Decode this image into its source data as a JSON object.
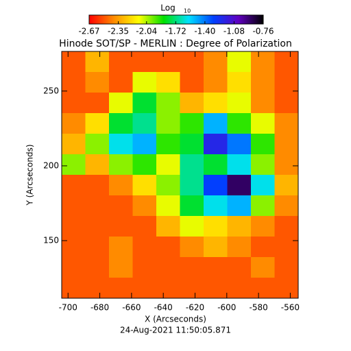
{
  "chart_data": {
    "type": "heatmap",
    "title": "Hinode SOT/SP - MERLIN : Degree of Polarization",
    "colorbar_label": "Log",
    "colorbar_label_sub": "10",
    "x_label": "X (Arcseconds)",
    "y_label": "Y (Arcseconds)",
    "footer": "24-Aug-2021 11:50:05.871",
    "xlim": [
      -704,
      -555
    ],
    "ylim": [
      111.5,
      276.5
    ],
    "xticks": [
      -700,
      -680,
      -660,
      -640,
      -620,
      -600,
      -580,
      -560
    ],
    "yticks": [
      150,
      200,
      250
    ],
    "clim": [
      -2.67,
      -0.76
    ],
    "cticks": [
      -2.67,
      -2.35,
      -2.04,
      -1.72,
      {
        "value": -1.4,
        "label": "-1.40"
      },
      -1.08,
      -0.76
    ],
    "colormap": [
      "#ff0000",
      "#ff8c00",
      "#ffff00",
      "#00e000",
      "#00e0ff",
      "#0040ff",
      "#6000c0",
      "#000000"
    ],
    "z": [
      [
        -2.5,
        -2.3,
        -2.5,
        -2.5,
        -2.5,
        -2.5,
        -2.4,
        -2.1,
        -2.4,
        -2.5
      ],
      [
        -2.5,
        -2.4,
        -2.5,
        -2.1,
        -2.2,
        -2.5,
        -2.4,
        -2.2,
        -2.4,
        -2.5
      ],
      [
        -2.5,
        -2.5,
        -2.1,
        -1.8,
        -2.0,
        -2.3,
        -2.2,
        -2.1,
        -2.4,
        -2.5
      ],
      [
        -2.4,
        -2.2,
        -1.8,
        -1.7,
        -2.0,
        -1.9,
        -1.5,
        -1.9,
        -2.1,
        -2.4
      ],
      [
        -2.3,
        -2.0,
        -1.6,
        -1.5,
        -1.9,
        -1.8,
        -1.2,
        -1.4,
        -1.9,
        -2.4
      ],
      [
        -2.0,
        -2.3,
        -2.0,
        -1.9,
        -2.1,
        -1.7,
        -1.8,
        -1.6,
        -2.0,
        -2.4
      ],
      [
        -2.5,
        -2.5,
        -2.4,
        -2.2,
        -2.0,
        -1.7,
        -1.3,
        -0.9,
        -1.6,
        -2.3
      ],
      [
        -2.5,
        -2.5,
        -2.5,
        -2.4,
        -2.1,
        -1.8,
        -1.6,
        -1.5,
        -2.0,
        -2.4
      ],
      [
        -2.5,
        -2.5,
        -2.5,
        -2.5,
        -2.3,
        -2.1,
        -2.2,
        -2.3,
        -2.4,
        -2.5
      ],
      [
        -2.5,
        -2.5,
        -2.4,
        -2.5,
        -2.5,
        -2.4,
        -2.3,
        -2.4,
        -2.5,
        -2.5
      ],
      [
        -2.5,
        -2.5,
        -2.4,
        -2.5,
        -2.5,
        -2.5,
        -2.5,
        -2.5,
        -2.4,
        -2.5
      ],
      [
        -2.5,
        -2.5,
        -2.5,
        -2.5,
        -2.5,
        -2.5,
        -2.5,
        -2.5,
        -2.5,
        -2.5
      ]
    ]
  }
}
